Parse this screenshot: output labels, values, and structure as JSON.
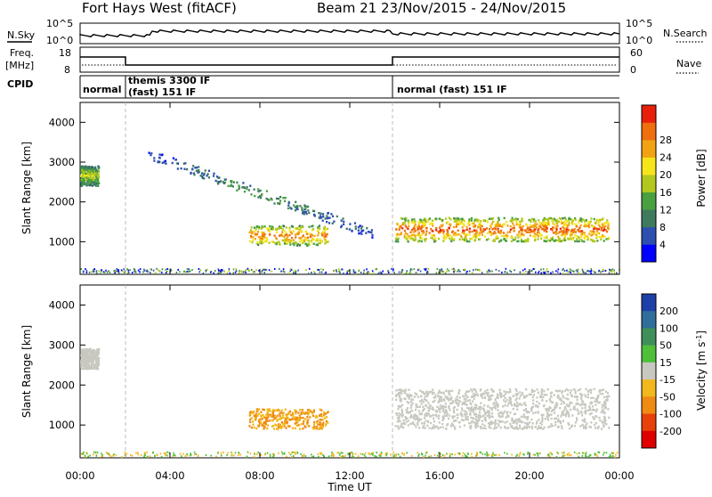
{
  "header": {
    "station": "Fort Hays West (fitACF)",
    "beam_info": "Beam 21  23/Nov/2015 - 24/Nov/2015"
  },
  "side_labels": {
    "nsky": "N.Sky",
    "nsearch": "N.Search",
    "freq_line1": "Freq.",
    "freq_line2": "[MHz]",
    "nave": "Nave",
    "cpid": "CPID"
  },
  "noise_axis": {
    "left_ticks": [
      "10^5",
      "10^0"
    ],
    "right_ticks": [
      "10^5",
      "10^0"
    ]
  },
  "freq_axis": {
    "left_ticks": [
      "18",
      "8"
    ],
    "right_ticks": [
      "60",
      "0"
    ]
  },
  "cpid_labels": [
    "normal",
    "themis 3300 IF\n(fast) 151 IF",
    "normal (fast) 151 IF"
  ],
  "chart_data": [
    {
      "type": "heatmap",
      "panel": "power",
      "ylabel": "Slant Range [km]",
      "xlabel": "",
      "x_ticks": [
        "00:00",
        "04:00",
        "08:00",
        "12:00",
        "16:00",
        "20:00",
        "00:00"
      ],
      "y_ticks": [
        "1000",
        "2000",
        "3000",
        "4000"
      ],
      "xlim_hours": [
        0,
        24
      ],
      "ylim_km": [
        180,
        4500
      ],
      "colorbar": {
        "label": "Power [dB]",
        "ticks": [
          "4",
          "8",
          "12",
          "16",
          "20",
          "24",
          "28"
        ],
        "colors": [
          "#0000ff",
          "#2c4fb0",
          "#3f7a5e",
          "#48a040",
          "#b3c81e",
          "#f7e51c",
          "#f2a313",
          "#ef6e0e",
          "#e8200a"
        ]
      },
      "features": [
        {
          "name": "main scatter band",
          "time_hours": [
            14,
            23.5
          ],
          "range_km": [
            1000,
            1600
          ],
          "power_db": 26
        },
        {
          "name": "morning echo",
          "time_hours": [
            7.5,
            11
          ],
          "range_km": [
            900,
            1400
          ],
          "power_db": 24
        },
        {
          "name": "descending trace",
          "time_hours": [
            3,
            13
          ],
          "range_km": [
            3200,
            1200
          ],
          "power_db": 10
        },
        {
          "name": "early echo",
          "time_hours": [
            0,
            0.8
          ],
          "range_km": [
            2400,
            2900
          ],
          "power_db": 16
        }
      ]
    },
    {
      "type": "heatmap",
      "panel": "velocity",
      "ylabel": "Slant Range [km]",
      "xlabel": "Time UT",
      "x_ticks": [
        "00:00",
        "04:00",
        "08:00",
        "12:00",
        "16:00",
        "20:00",
        "00:00"
      ],
      "y_ticks": [
        "1000",
        "2000",
        "3000",
        "4000"
      ],
      "xlim_hours": [
        0,
        24
      ],
      "ylim_km": [
        180,
        4500
      ],
      "colorbar": {
        "label": "Velocity [m s^-1]",
        "ticks": [
          "200",
          "100",
          "50",
          "15",
          "-15",
          "-50",
          "-100",
          "-200"
        ],
        "colors": [
          "#1f3fa8",
          "#2f6e9a",
          "#3f8f5a",
          "#4fbf3a",
          "#c8c8c0",
          "#f2b81c",
          "#ef8a13",
          "#e8400a",
          "#e00000"
        ]
      },
      "features": [
        {
          "name": "main band (ground scatter)",
          "time_hours": [
            14,
            23.5
          ],
          "range_km": [
            900,
            1900
          ],
          "velocity": 0
        },
        {
          "name": "morning echo",
          "time_hours": [
            7.5,
            11
          ],
          "range_km": [
            900,
            1400
          ],
          "velocity": -30
        },
        {
          "name": "early echo",
          "time_hours": [
            0,
            0.8
          ],
          "range_km": [
            2400,
            2900
          ],
          "velocity": 0
        }
      ]
    }
  ]
}
